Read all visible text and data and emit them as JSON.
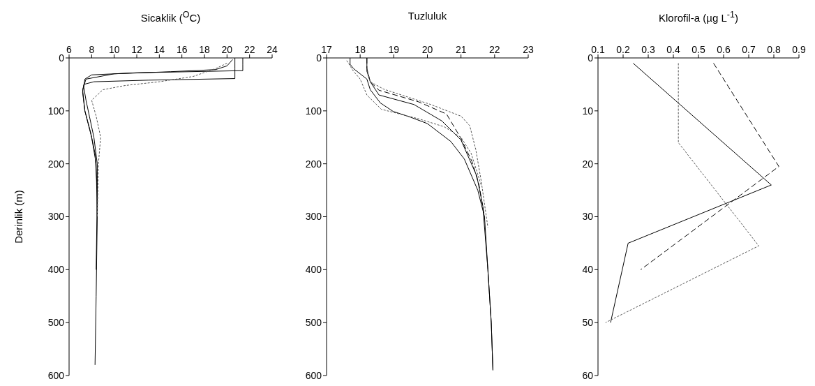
{
  "chart_data": [
    {
      "type": "line",
      "title": "Sicaklik ($^{O}$C)",
      "ylabel": "Derinlik (m)",
      "xlim": [
        6,
        24
      ],
      "xticks": [
        6,
        8,
        10,
        12,
        14,
        16,
        18,
        20,
        22,
        24
      ],
      "ylim": [
        600,
        0
      ],
      "yticks": [
        0,
        100,
        200,
        300,
        400,
        500,
        600
      ],
      "grid": false,
      "legend": false,
      "marker": "none",
      "series": [
        {
          "color": "#000000",
          "line_style": "solid",
          "x": [
            21.4,
            21.4,
            21.4,
            12,
            8,
            7.4,
            7.3,
            7.5,
            7.8,
            8.2,
            8.5,
            8.5,
            8.4,
            8.3
          ],
          "values": [
            0,
            12,
            24,
            28,
            32,
            40,
            55,
            80,
            110,
            150,
            200,
            300,
            450,
            580
          ]
        },
        {
          "color": "#000000",
          "line_style": "solid",
          "x": [
            20.7,
            20.7,
            20.7,
            13,
            8.2,
            7.3,
            7.2,
            7.4,
            7.9,
            8.3,
            8.5,
            8.4
          ],
          "values": [
            0,
            20,
            39,
            42,
            45,
            50,
            65,
            100,
            140,
            180,
            250,
            400
          ]
        },
        {
          "color": "#000000",
          "line_style": "solid",
          "x": [
            20.5,
            20,
            19,
            15,
            10,
            7.5,
            7.2,
            7.4,
            8,
            8.4,
            8.5
          ],
          "values": [
            3,
            15,
            22,
            26,
            30,
            40,
            60,
            100,
            150,
            200,
            300
          ]
        },
        {
          "color": "#555555",
          "line_style": "dotted",
          "x": [
            20,
            19,
            17,
            14,
            11,
            9,
            8,
            8.4,
            8.8,
            8.6,
            8.5
          ],
          "values": [
            10,
            20,
            35,
            45,
            52,
            60,
            80,
            110,
            150,
            200,
            300
          ]
        }
      ]
    },
    {
      "type": "line",
      "title": "Tuzluluk",
      "xlim": [
        17,
        23
      ],
      "xticks": [
        17,
        18,
        19,
        20,
        21,
        22,
        23
      ],
      "ylim": [
        600,
        0
      ],
      "yticks": [
        0,
        100,
        200,
        300,
        400,
        500,
        600
      ],
      "grid": false,
      "legend": false,
      "marker": "none",
      "series": [
        {
          "color": "#000000",
          "line_style": "solid",
          "x": [
            17.7,
            17.7,
            17.8,
            18,
            18.2,
            18.3,
            18.6,
            18.98,
            19.5,
            20,
            20.7,
            21.1,
            21.5,
            21.7,
            21.8,
            21.9,
            21.95
          ],
          "values": [
            0,
            12,
            20,
            30,
            40,
            60,
            85,
            101,
            112,
            124,
            158,
            191,
            250,
            300,
            400,
            500,
            590
          ]
        },
        {
          "color": "#000000",
          "line_style": "solid",
          "x": [
            18.2,
            18.2,
            18.3,
            18.56,
            19.6,
            20.43,
            21,
            21.47,
            21.65,
            21.8,
            21.9,
            21.95
          ],
          "values": [
            0,
            25,
            45,
            70,
            88,
            119,
            155,
            223,
            280,
            400,
            500,
            590
          ]
        },
        {
          "color": "#000000",
          "line_style": "dashed",
          "x": [
            18.2,
            18.2,
            18.3,
            18.56,
            19.74,
            20.57,
            20.99,
            21.33,
            21.54,
            21.7
          ],
          "values": [
            0,
            20,
            45,
            61,
            83,
            106,
            151,
            196,
            241,
            300
          ]
        },
        {
          "color": "#555555",
          "line_style": "dotted",
          "x": [
            17.6,
            17.8,
            18,
            18.2,
            18.63,
            19.74,
            20.5,
            21,
            21.3,
            21.6
          ],
          "values": [
            5,
            25,
            40,
            70,
            97,
            115,
            130,
            150,
            180,
            240
          ]
        },
        {
          "color": "#555555",
          "line_style": "dotted",
          "x": [
            18.2,
            18.3,
            18.7,
            20.1,
            21,
            21.26,
            21.44,
            21.6,
            21.8
          ],
          "values": [
            20,
            45,
            59,
            88,
            110,
            128,
            173,
            232,
            320
          ]
        }
      ]
    },
    {
      "type": "line",
      "title": "Klorofil-a (µg L$^{-1}$)",
      "xlim": [
        0.1,
        0.9
      ],
      "xticks": [
        0.1,
        0.2,
        0.3,
        0.4,
        0.5,
        0.6,
        0.7,
        0.8,
        0.9
      ],
      "ylim": [
        60,
        0
      ],
      "yticks": [
        0,
        10,
        20,
        30,
        40,
        50,
        60
      ],
      "grid": false,
      "legend": false,
      "marker": "none",
      "series": [
        {
          "color": "#000000",
          "line_style": "solid",
          "x": [
            0.24,
            0.79,
            0.22,
            0.15
          ],
          "values": [
            1,
            24,
            35,
            50
          ]
        },
        {
          "color": "#000000",
          "line_style": "dashed",
          "x": [
            0.56,
            0.82,
            0.27
          ],
          "values": [
            1,
            20.5,
            40
          ]
        },
        {
          "color": "#555555",
          "line_style": "dotted",
          "x": [
            0.42,
            0.42,
            0.74,
            0.13
          ],
          "values": [
            1,
            16,
            35.5,
            50
          ]
        }
      ]
    }
  ]
}
